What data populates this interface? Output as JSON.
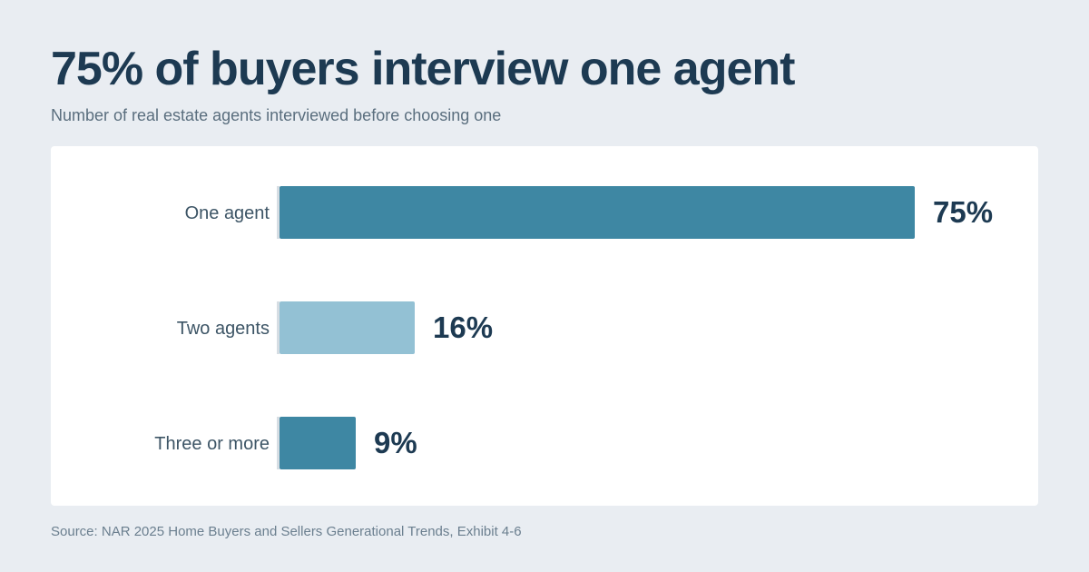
{
  "header": {
    "title": "75% of buyers interview one agent",
    "subtitle": "Number of real estate agents interviewed before choosing one"
  },
  "footer": {
    "source": "Source: NAR 2025 Home Buyers and Sellers Generational Trends, Exhibit 4-6"
  },
  "colors": {
    "background": "#e9edf2",
    "card": "#ffffff",
    "title": "#1d3a52",
    "bar_dark": "#3e87a3",
    "bar_light": "#93c1d4",
    "label": "#3d5566",
    "value": "#1d3a52"
  },
  "chart_data": {
    "type": "bar",
    "orientation": "horizontal",
    "title": "75% of buyers interview one agent",
    "subtitle": "Number of real estate agents interviewed before choosing one",
    "categories": [
      "One agent",
      "Two agents",
      "Three or more"
    ],
    "values": [
      75,
      16,
      9
    ],
    "value_labels": [
      "75%",
      "16%",
      "9%"
    ],
    "bar_colors": [
      "#3e87a3",
      "#93c1d4",
      "#3e87a3"
    ],
    "unit": "%",
    "xlim": [
      0,
      75
    ],
    "grid": false,
    "legend": "none"
  }
}
